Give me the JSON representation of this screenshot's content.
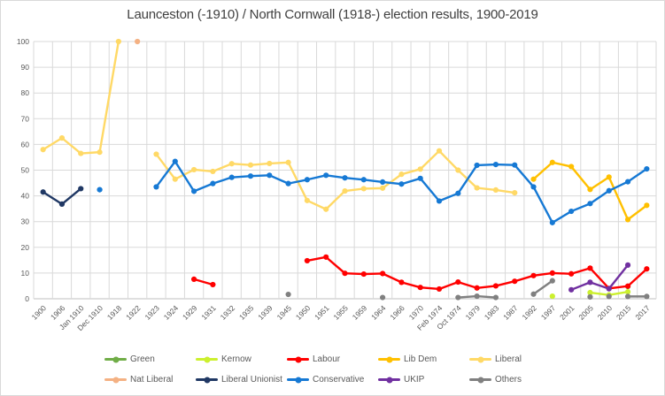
{
  "chart_data": {
    "type": "line",
    "title": "Launceston (-1910) / North Cornwall (1918-) election results, 1900-2019",
    "xlabel": "",
    "ylabel": "",
    "ylim": [
      0,
      100
    ],
    "y_ticks": [
      0,
      10,
      20,
      30,
      40,
      50,
      60,
      70,
      80,
      90,
      100
    ],
    "grid": true,
    "legend_position": "bottom",
    "x_label_rotation": -45,
    "categories": [
      "1900",
      "1906",
      "Jan 1910",
      "Dec 1910",
      "1918",
      "1922",
      "1923",
      "1924",
      "1929",
      "1931",
      "1932",
      "1935",
      "1939",
      "1945",
      "1950",
      "1951",
      "1955",
      "1959",
      "1964",
      "1966",
      "1970",
      "Feb 1974",
      "Oct 1974",
      "1979",
      "1983",
      "1987",
      "1992",
      "1997",
      "2001",
      "2005",
      "2010",
      "2015",
      "2017"
    ],
    "series": [
      {
        "name": "Green",
        "color": "#70AD47",
        "segments": [
          [
            [
              31,
              4.8
            ]
          ]
        ]
      },
      {
        "name": "Kernow",
        "color": "#CCF02E",
        "segments": [
          [
            [
              27,
              1.0
            ]
          ],
          [
            [
              29,
              2.4
            ],
            [
              30,
              1.5
            ],
            [
              31,
              2.7
            ]
          ]
        ]
      },
      {
        "name": "Labour",
        "color": "#FF0000",
        "segments": [
          [
            [
              8,
              7.6
            ],
            [
              9,
              5.5
            ]
          ],
          [
            [
              14,
              14.8
            ],
            [
              15,
              16.2
            ],
            [
              16,
              9.9
            ],
            [
              17,
              9.6
            ],
            [
              18,
              9.8
            ],
            [
              19,
              6.4
            ],
            [
              20,
              4.4
            ],
            [
              21,
              3.8
            ],
            [
              22,
              6.5
            ],
            [
              23,
              4.2
            ],
            [
              24,
              5.0
            ],
            [
              25,
              6.8
            ],
            [
              26,
              9.0
            ],
            [
              27,
              10.0
            ],
            [
              28,
              9.7
            ],
            [
              29,
              11.9
            ],
            [
              30,
              4.0
            ],
            [
              31,
              4.9
            ],
            [
              32,
              11.6
            ]
          ]
        ]
      },
      {
        "name": "Lib Dem",
        "color": "#FFC000",
        "segments": [
          [
            [
              26,
              46.5
            ],
            [
              27,
              53.0
            ],
            [
              28,
              51.4
            ],
            [
              29,
              42.5
            ],
            [
              30,
              47.3
            ],
            [
              31,
              30.8
            ],
            [
              32,
              36.3
            ]
          ]
        ]
      },
      {
        "name": "Liberal",
        "color": "#FFD966",
        "segments": [
          [
            [
              0,
              58.0
            ],
            [
              1,
              62.5
            ],
            [
              2,
              56.5
            ],
            [
              3,
              57.0
            ],
            [
              4,
              100
            ]
          ],
          [
            [
              6,
              56.2
            ],
            [
              7,
              46.5
            ],
            [
              8,
              50.2
            ],
            [
              9,
              49.5
            ],
            [
              10,
              52.5
            ],
            [
              11,
              52.0
            ],
            [
              12,
              52.6
            ],
            [
              13,
              53.0
            ],
            [
              14,
              38.2
            ],
            [
              15,
              34.8
            ],
            [
              16,
              41.9
            ],
            [
              17,
              42.8
            ],
            [
              18,
              43.0
            ],
            [
              19,
              48.4
            ],
            [
              20,
              50.4
            ],
            [
              21,
              57.5
            ],
            [
              22,
              50.0
            ],
            [
              23,
              43.1
            ],
            [
              24,
              42.3
            ],
            [
              25,
              41.2
            ]
          ]
        ]
      },
      {
        "name": "Nat Liberal",
        "color": "#F4B183",
        "segments": [
          [
            [
              5,
              100
            ]
          ]
        ]
      },
      {
        "name": "Liberal Unionist",
        "color": "#203864",
        "segments": [
          [
            [
              0,
              41.5
            ],
            [
              1,
              36.8
            ],
            [
              2,
              42.8
            ]
          ]
        ]
      },
      {
        "name": "Conservative",
        "color": "#1679D4",
        "segments": [
          [
            [
              3,
              42.4
            ]
          ],
          [
            [
              6,
              43.5
            ],
            [
              7,
              53.4
            ],
            [
              8,
              41.8
            ],
            [
              9,
              44.8
            ],
            [
              10,
              47.2
            ],
            [
              11,
              47.7
            ],
            [
              12,
              48.0
            ],
            [
              13,
              44.8
            ],
            [
              14,
              46.3
            ],
            [
              15,
              48.0
            ],
            [
              16,
              47.0
            ],
            [
              17,
              46.3
            ],
            [
              18,
              45.4
            ],
            [
              19,
              44.6
            ],
            [
              20,
              46.8
            ],
            [
              21,
              38.0
            ],
            [
              22,
              41.0
            ],
            [
              23,
              51.9
            ],
            [
              24,
              52.2
            ],
            [
              25,
              52.0
            ],
            [
              26,
              43.5
            ],
            [
              27,
              29.6
            ],
            [
              28,
              34.0
            ],
            [
              29,
              37.0
            ],
            [
              30,
              42.0
            ],
            [
              31,
              45.5
            ],
            [
              32,
              50.5
            ]
          ]
        ]
      },
      {
        "name": "UKIP",
        "color": "#7030A0",
        "segments": [
          [
            [
              28,
              3.5
            ],
            [
              29,
              6.4
            ],
            [
              30,
              3.9
            ],
            [
              31,
              13.1
            ]
          ]
        ]
      },
      {
        "name": "Others",
        "color": "#808080",
        "segments": [
          [
            [
              13,
              1.7
            ]
          ],
          [
            [
              18,
              0.5
            ]
          ],
          [
            [
              22,
              0.5
            ],
            [
              23,
              1.0
            ],
            [
              24,
              0.5
            ]
          ],
          [
            [
              26,
              1.8
            ],
            [
              27,
              7.0
            ]
          ],
          [
            [
              29,
              0.7
            ]
          ],
          [
            [
              30,
              0.9
            ]
          ],
          [
            [
              31,
              0.9
            ],
            [
              32,
              0.9
            ]
          ]
        ]
      }
    ],
    "legend_rows": [
      [
        "Green",
        "Kernow",
        "Labour",
        "Lib Dem",
        "Liberal"
      ],
      [
        "Nat Liberal",
        "Liberal Unionist",
        "Conservative",
        "UKIP",
        "Others"
      ]
    ],
    "axis_text_color": "#595959",
    "gridline_color": "#D9D9D9",
    "axis_line_color": "#BFBFBF",
    "title_color": "#404040"
  }
}
